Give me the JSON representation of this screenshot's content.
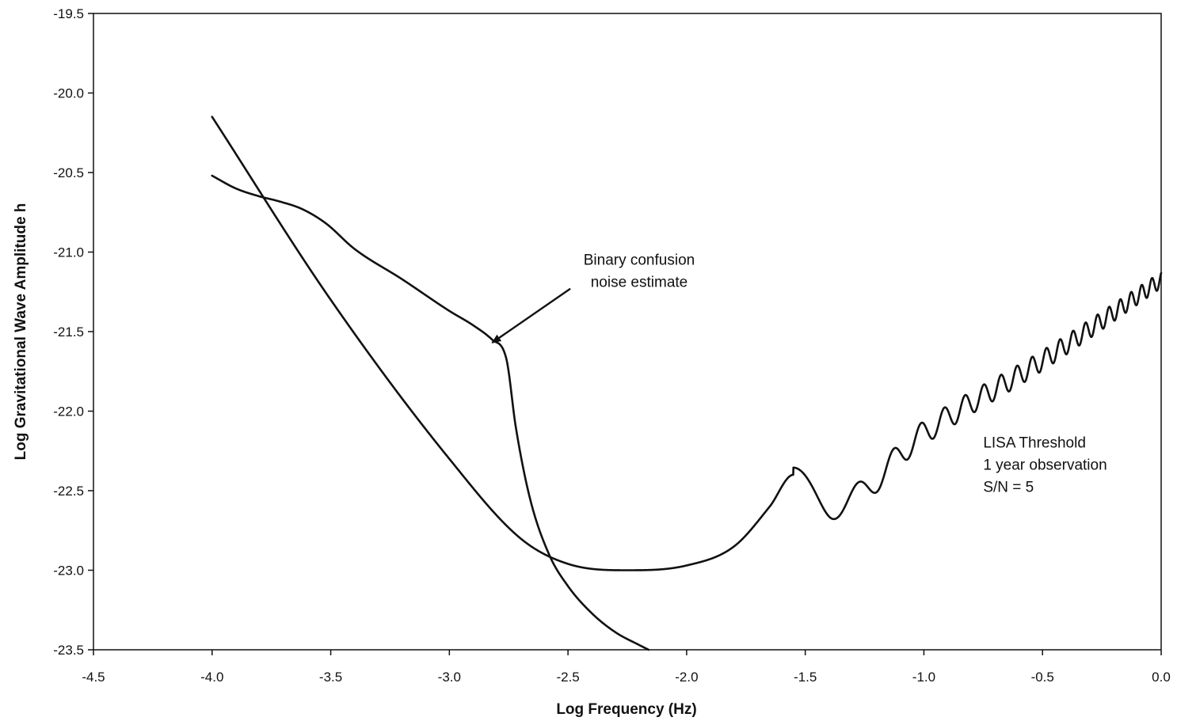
{
  "chart_data": {
    "type": "line",
    "title": "",
    "xlabel": "Log Frequency (Hz)",
    "ylabel": "Log Gravitational Wave Amplitude h",
    "xlim": [
      -4.5,
      0.0
    ],
    "ylim": [
      -23.5,
      -19.5
    ],
    "x_ticks": [
      "-4.5",
      "-4.0",
      "-3.5",
      "-3.0",
      "-2.5",
      "-2.0",
      "-1.5",
      "-1.0",
      "-0.5",
      "0.0"
    ],
    "y_ticks": [
      "-19.5",
      "-20.0",
      "-20.5",
      "-21.0",
      "-21.5",
      "-22.0",
      "-22.5",
      "-23.0",
      "-23.5"
    ],
    "grid": false,
    "series": [
      {
        "points": [
          [
            -4.0,
            -20.15
          ],
          [
            -3.5,
            -21.3
          ],
          [
            -3.0,
            -22.3
          ],
          [
            -2.7,
            -22.8
          ],
          [
            -2.5,
            -22.96
          ],
          [
            -2.25,
            -23.0
          ],
          [
            -2.0,
            -22.97
          ],
          [
            -1.8,
            -22.85
          ],
          [
            -1.65,
            -22.6
          ],
          [
            -1.55,
            -22.4
          ],
          [
            -1.38,
            -22.55
          ],
          [
            -1.0,
            -22.1
          ],
          [
            -0.5,
            -21.65
          ],
          [
            0.0,
            -21.15
          ]
        ],
        "oscillation": {
          "start_x": -1.55,
          "end_x": 0.0,
          "amplitude_start": 0.09,
          "amplitude_end": 0.05,
          "cycles_start": 1.7,
          "cycles_end": 24
        }
      },
      {
        "points": [
          [
            -4.0,
            -20.52
          ],
          [
            -3.9,
            -20.6
          ],
          [
            -3.8,
            -20.65
          ],
          [
            -3.72,
            -20.68
          ],
          [
            -3.62,
            -20.73
          ],
          [
            -3.52,
            -20.82
          ],
          [
            -3.4,
            -20.98
          ],
          [
            -3.2,
            -21.17
          ],
          [
            -3.0,
            -21.37
          ],
          [
            -2.9,
            -21.46
          ],
          [
            -2.82,
            -21.55
          ],
          [
            -2.76,
            -21.67
          ],
          [
            -2.72,
            -22.1
          ],
          [
            -2.66,
            -22.55
          ],
          [
            -2.58,
            -22.9
          ],
          [
            -2.5,
            -23.1
          ],
          [
            -2.4,
            -23.27
          ],
          [
            -2.3,
            -23.39
          ],
          [
            -2.2,
            -23.47
          ],
          [
            -2.16,
            -23.5
          ]
        ]
      }
    ],
    "annotations": [
      {
        "lines": [
          "Binary confusion",
          "noise estimate"
        ],
        "text_at": [
          -2.2,
          -21.08
        ],
        "arrow_from": [
          -2.49,
          -21.23
        ],
        "arrow_to": [
          -2.82,
          -21.57
        ]
      },
      {
        "lines": [
          "LISA Threshold",
          "1 year observation",
          "S/N = 5"
        ],
        "text_at": [
          -0.75,
          -22.23
        ]
      }
    ]
  }
}
